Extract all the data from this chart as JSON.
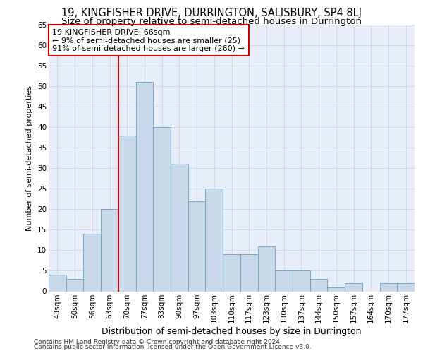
{
  "title1": "19, KINGFISHER DRIVE, DURRINGTON, SALISBURY, SP4 8LJ",
  "title2": "Size of property relative to semi-detached houses in Durrington",
  "xlabel": "Distribution of semi-detached houses by size in Durrington",
  "ylabel": "Number of semi-detached properties",
  "footnote1": "Contains HM Land Registry data © Crown copyright and database right 2024.",
  "footnote2": "Contains public sector information licensed under the Open Government Licence v3.0.",
  "annotation_line1": "19 KINGFISHER DRIVE: 66sqm",
  "annotation_line2": "← 9% of semi-detached houses are smaller (25)",
  "annotation_line3": "91% of semi-detached houses are larger (260) →",
  "bins": [
    "43sqm",
    "50sqm",
    "56sqm",
    "63sqm",
    "70sqm",
    "77sqm",
    "83sqm",
    "90sqm",
    "97sqm",
    "103sqm",
    "110sqm",
    "117sqm",
    "123sqm",
    "130sqm",
    "137sqm",
    "144sqm",
    "150sqm",
    "157sqm",
    "164sqm",
    "170sqm",
    "177sqm"
  ],
  "values": [
    4,
    3,
    14,
    20,
    38,
    51,
    40,
    31,
    22,
    25,
    9,
    9,
    11,
    5,
    5,
    3,
    1,
    2,
    0,
    2,
    2
  ],
  "bar_color": "#cad9ea",
  "bar_edge_color": "#6a9ec0",
  "vline_color": "#cc0000",
  "annotation_box_edge_color": "#cc0000",
  "ylim": [
    0,
    65
  ],
  "yticks": [
    0,
    5,
    10,
    15,
    20,
    25,
    30,
    35,
    40,
    45,
    50,
    55,
    60,
    65
  ],
  "grid_color": "#c5cfe0",
  "bg_color": "#e8eef8",
  "title1_fontsize": 10.5,
  "title2_fontsize": 9.5,
  "xlabel_fontsize": 9,
  "ylabel_fontsize": 8,
  "tick_fontsize": 7.5,
  "annotation_fontsize": 8,
  "footnote_fontsize": 6.5,
  "vline_bin_index": 3
}
